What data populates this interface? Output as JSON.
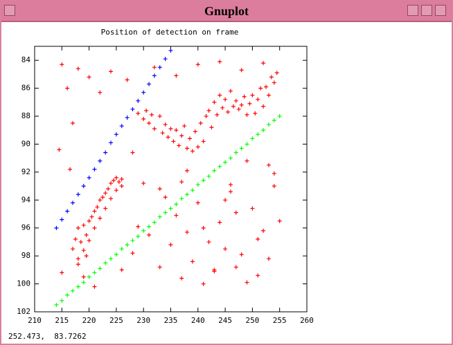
{
  "window_title": "Gnuplot",
  "status_text": "252.473,  83.7262",
  "chart_data": {
    "type": "scatter",
    "title": "Position of detection on frame",
    "xlim": [
      210,
      260
    ],
    "xticks": [
      210,
      215,
      220,
      225,
      230,
      235,
      240,
      245,
      250,
      255,
      260
    ],
    "ylim": [
      83,
      102
    ],
    "y_reversed": true,
    "yticks": [
      84,
      86,
      88,
      90,
      92,
      94,
      96,
      98,
      100,
      102
    ],
    "grid": false,
    "marker": "+",
    "series": [
      {
        "color": "#ff0000",
        "x": [
          217,
          217.5,
          218,
          218,
          218.5,
          219,
          219,
          219.5,
          220,
          220,
          220.5,
          221,
          221,
          221.5,
          222,
          222,
          222.5,
          223,
          223,
          223.5,
          224,
          224,
          224.5,
          225,
          225,
          225.5,
          226,
          226,
          218,
          219.5,
          229,
          230,
          230.5,
          231,
          231.5,
          232,
          233,
          233.5,
          234,
          234.5,
          235,
          235.5,
          236,
          236.5,
          237,
          237.5,
          238,
          238.5,
          239,
          239.5,
          240,
          240.5,
          241,
          241.5,
          242,
          242.5,
          243,
          243.5,
          244,
          244.5,
          245,
          245.5,
          246,
          246.5,
          247,
          247.5,
          248,
          248.5,
          249,
          249.5,
          250,
          250.5,
          251,
          251.5,
          252,
          252.5,
          253,
          253.5,
          254,
          254.5,
          215,
          216,
          217,
          218,
          220,
          222,
          224,
          228,
          214.5,
          216.5,
          219,
          221,
          226,
          228,
          231,
          233,
          235,
          237,
          239,
          241,
          243,
          245,
          247,
          249,
          251,
          253,
          255,
          234,
          236,
          238,
          240,
          242,
          244,
          246,
          248,
          250,
          252,
          254,
          232,
          236,
          240,
          244,
          248,
          252,
          230,
          238,
          246,
          254,
          215,
          227,
          229,
          233,
          237,
          241,
          245,
          249,
          253,
          243,
          247,
          251
        ],
        "values": [
          97.5,
          96.8,
          98.2,
          96.0,
          97.0,
          95.8,
          97.6,
          96.5,
          95.5,
          96.9,
          95.2,
          94.8,
          96.0,
          94.5,
          94.0,
          95.3,
          93.8,
          93.5,
          94.6,
          93.2,
          92.8,
          93.9,
          92.6,
          92.4,
          93.3,
          92.7,
          92.5,
          93.0,
          98.6,
          98.0,
          87.8,
          88.2,
          87.6,
          88.5,
          87.9,
          88.9,
          88.0,
          89.2,
          88.6,
          89.5,
          88.9,
          89.8,
          89.0,
          90.1,
          89.4,
          88.7,
          90.3,
          89.6,
          90.5,
          89.1,
          90.2,
          88.5,
          89.8,
          88.0,
          87.6,
          88.8,
          87.0,
          87.9,
          86.5,
          87.4,
          86.8,
          87.7,
          86.2,
          87.3,
          86.9,
          87.5,
          87.2,
          86.6,
          87.9,
          87.1,
          86.5,
          87.8,
          86.8,
          86.0,
          87.3,
          85.9,
          86.5,
          85.2,
          85.6,
          84.9,
          84.3,
          86.0,
          88.5,
          84.6,
          85.2,
          86.3,
          84.8,
          90.6,
          90.4,
          91.8,
          99.5,
          100.2,
          99.0,
          97.8,
          96.5,
          98.8,
          97.2,
          99.6,
          98.4,
          100.0,
          99.1,
          97.5,
          98.8,
          99.9,
          96.8,
          98.2,
          95.5,
          93.8,
          95.1,
          96.3,
          94.2,
          97.0,
          95.6,
          93.4,
          97.9,
          94.6,
          96.2,
          92.1,
          84.5,
          85.1,
          84.3,
          84.1,
          84.7,
          84.2,
          92.8,
          91.9,
          92.9,
          93.0,
          99.2,
          85.4,
          95.9,
          93.2,
          92.7,
          96.0,
          94.0,
          91.2,
          91.5,
          99.0,
          94.9,
          99.4
        ]
      },
      {
        "color": "#0000ff",
        "x": [
          214,
          215,
          216,
          217,
          218,
          219,
          220,
          221,
          222,
          223,
          224,
          225,
          226,
          227,
          228,
          229,
          230,
          231,
          232,
          233,
          234,
          235
        ],
        "values": [
          96.0,
          95.4,
          94.8,
          94.2,
          93.6,
          93.0,
          92.4,
          91.8,
          91.2,
          90.6,
          89.9,
          89.3,
          88.7,
          88.1,
          87.5,
          86.9,
          86.3,
          85.7,
          85.1,
          84.5,
          83.9,
          83.3
        ]
      },
      {
        "color": "#00ff00",
        "x": [
          214,
          215,
          216,
          217,
          218,
          219,
          220,
          221,
          222,
          223,
          224,
          225,
          226,
          227,
          228,
          229,
          230,
          231,
          232,
          233,
          234,
          235,
          236,
          237,
          238,
          239,
          240,
          241,
          242,
          243,
          244,
          245,
          246,
          247,
          248,
          249,
          250,
          251,
          252,
          253,
          254,
          255
        ],
        "values": [
          101.5,
          101.2,
          100.8,
          100.5,
          100.2,
          99.9,
          99.5,
          99.2,
          98.9,
          98.5,
          98.2,
          97.9,
          97.5,
          97.2,
          96.9,
          96.6,
          96.2,
          95.9,
          95.6,
          95.2,
          94.9,
          94.6,
          94.3,
          93.9,
          93.6,
          93.3,
          92.9,
          92.6,
          92.3,
          91.9,
          91.6,
          91.3,
          91.0,
          90.6,
          90.3,
          90.0,
          89.6,
          89.3,
          89.0,
          88.6,
          88.3,
          88.0
        ]
      }
    ]
  }
}
